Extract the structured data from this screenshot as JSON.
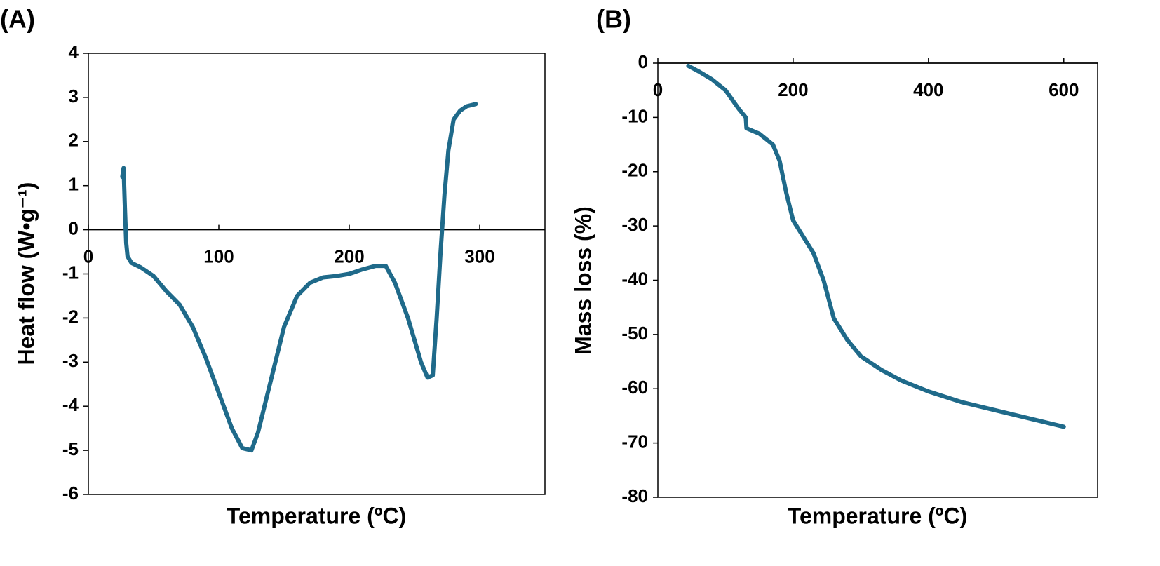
{
  "chart_data": [
    {
      "type": "line",
      "panel_label": "(A)",
      "xlabel": "Temperature (ºC)",
      "ylabel": "Heat  flow (W•g⁻¹)",
      "xlim": [
        0,
        350
      ],
      "xticks": [
        0,
        100,
        200,
        300
      ],
      "ylim": [
        -6,
        4
      ],
      "yticks": [
        -6,
        -5,
        -4,
        -3,
        -2,
        -1,
        0,
        1,
        2,
        3,
        4
      ],
      "color": "#1f6a8a",
      "x": [
        26,
        27,
        28,
        29,
        30,
        33,
        40,
        50,
        60,
        70,
        80,
        90,
        100,
        110,
        118,
        125,
        130,
        140,
        150,
        160,
        170,
        180,
        190,
        200,
        210,
        220,
        228,
        235,
        245,
        255,
        260,
        264,
        267,
        270,
        273,
        276,
        280,
        285,
        290,
        297
      ],
      "values": [
        1.2,
        1.4,
        0.5,
        -0.3,
        -0.6,
        -0.75,
        -0.85,
        -1.05,
        -1.4,
        -1.7,
        -2.2,
        -2.9,
        -3.7,
        -4.5,
        -4.95,
        -5.0,
        -4.6,
        -3.4,
        -2.2,
        -1.5,
        -1.2,
        -1.08,
        -1.05,
        -1.0,
        -0.9,
        -0.82,
        -0.82,
        -1.2,
        -2.0,
        -3.0,
        -3.35,
        -3.3,
        -2.0,
        -0.5,
        0.8,
        1.8,
        2.5,
        2.7,
        2.8,
        2.85
      ]
    },
    {
      "type": "line",
      "panel_label": "(B)",
      "xlabel": "Temperature (ºC)",
      "ylabel": "Mass loss (%)",
      "xlim": [
        0,
        650
      ],
      "xticks": [
        0,
        200,
        400,
        600
      ],
      "ylim": [
        -80,
        0
      ],
      "yticks": [
        -80,
        -70,
        -60,
        -50,
        -40,
        -30,
        -20,
        -10,
        0
      ],
      "color": "#1f6a8a",
      "x": [
        45,
        60,
        80,
        100,
        120,
        130,
        131,
        150,
        170,
        180,
        190,
        200,
        215,
        230,
        245,
        260,
        280,
        300,
        330,
        360,
        400,
        450,
        500,
        550,
        600
      ],
      "values": [
        -0.5,
        -1.5,
        -3,
        -5,
        -8.5,
        -10,
        -12,
        -13,
        -15,
        -18,
        -24,
        -29,
        -32,
        -35,
        -40,
        -47,
        -51,
        -54,
        -56.5,
        -58.5,
        -60.5,
        -62.5,
        -64,
        -65.5,
        -67
      ]
    }
  ]
}
